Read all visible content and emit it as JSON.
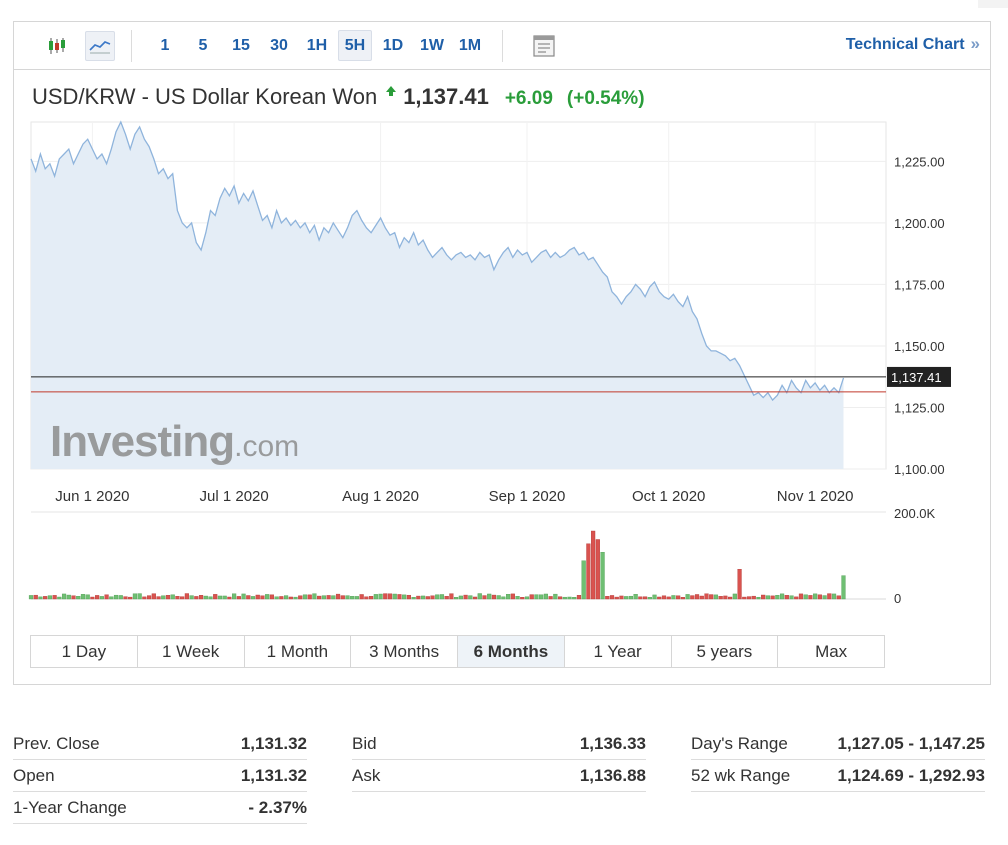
{
  "toolbar": {
    "chart_type_icons": [
      "candlestick-icon",
      "area-chart-icon"
    ],
    "intervals": [
      {
        "label": "1",
        "active": false
      },
      {
        "label": "5",
        "active": false
      },
      {
        "label": "15",
        "active": false
      },
      {
        "label": "30",
        "active": false
      },
      {
        "label": "1H",
        "active": false
      },
      {
        "label": "5H",
        "active": true
      },
      {
        "label": "1D",
        "active": false
      },
      {
        "label": "1W",
        "active": false
      },
      {
        "label": "1M",
        "active": false
      }
    ],
    "layout_icon": "layout-icon",
    "technical_link": "Technical Chart",
    "technical_chevron": "»"
  },
  "quote": {
    "name": "USD/KRW - US Dollar Korean Won",
    "price": "1,137.41",
    "change": "+6.09",
    "change_pct": "(+0.54%)",
    "direction_icon": "up-arrow-icon",
    "up_color": "#2a9d3a"
  },
  "watermark": {
    "brand": "Investing",
    "suffix": ".com"
  },
  "chart_data": {
    "type": "area",
    "title": "",
    "y_ticks": [
      "1,225.00",
      "1,200.00",
      "1,175.00",
      "1,150.00",
      "1,125.00",
      "1,100.00"
    ],
    "y_tick_values": [
      1225,
      1200,
      1175,
      1150,
      1125,
      1100
    ],
    "ylim": [
      1100,
      1241
    ],
    "x_ticks": [
      "Jun 1 2020",
      "Jul 1 2020",
      "Aug 1 2020",
      "Sep 1 2020",
      "Oct 1 2020",
      "Nov 1 2020"
    ],
    "xlim": [
      0,
      181
    ],
    "x_tick_positions": [
      13,
      43,
      74,
      105,
      135,
      166
    ],
    "current_price": 1137.41,
    "current_price_label": "1,137.41",
    "prev_close": 1131.32,
    "line_color": "#8fb4dc",
    "fill_color": "#e4edf6",
    "series": [
      {
        "x": 0,
        "y": 1226
      },
      {
        "x": 1,
        "y": 1221
      },
      {
        "x": 2,
        "y": 1228
      },
      {
        "x": 3,
        "y": 1222
      },
      {
        "x": 4,
        "y": 1224
      },
      {
        "x": 5,
        "y": 1219
      },
      {
        "x": 6,
        "y": 1226
      },
      {
        "x": 7,
        "y": 1228
      },
      {
        "x": 8,
        "y": 1230
      },
      {
        "x": 9,
        "y": 1224
      },
      {
        "x": 10,
        "y": 1228
      },
      {
        "x": 11,
        "y": 1232
      },
      {
        "x": 12,
        "y": 1234
      },
      {
        "x": 13,
        "y": 1230
      },
      {
        "x": 14,
        "y": 1226
      },
      {
        "x": 15,
        "y": 1228
      },
      {
        "x": 16,
        "y": 1224
      },
      {
        "x": 17,
        "y": 1230
      },
      {
        "x": 18,
        "y": 1237
      },
      {
        "x": 19,
        "y": 1241
      },
      {
        "x": 20,
        "y": 1236
      },
      {
        "x": 21,
        "y": 1230
      },
      {
        "x": 22,
        "y": 1236
      },
      {
        "x": 23,
        "y": 1239
      },
      {
        "x": 24,
        "y": 1234
      },
      {
        "x": 25,
        "y": 1231
      },
      {
        "x": 26,
        "y": 1226
      },
      {
        "x": 27,
        "y": 1220
      },
      {
        "x": 28,
        "y": 1222
      },
      {
        "x": 29,
        "y": 1218
      },
      {
        "x": 30,
        "y": 1220
      },
      {
        "x": 31,
        "y": 1205
      },
      {
        "x": 32,
        "y": 1200
      },
      {
        "x": 33,
        "y": 1198
      },
      {
        "x": 34,
        "y": 1200
      },
      {
        "x": 35,
        "y": 1192
      },
      {
        "x": 36,
        "y": 1189
      },
      {
        "x": 37,
        "y": 1196
      },
      {
        "x": 38,
        "y": 1205
      },
      {
        "x": 39,
        "y": 1203
      },
      {
        "x": 40,
        "y": 1210
      },
      {
        "x": 41,
        "y": 1214
      },
      {
        "x": 42,
        "y": 1211
      },
      {
        "x": 43,
        "y": 1215
      },
      {
        "x": 44,
        "y": 1208
      },
      {
        "x": 45,
        "y": 1212
      },
      {
        "x": 46,
        "y": 1209
      },
      {
        "x": 47,
        "y": 1213
      },
      {
        "x": 48,
        "y": 1207
      },
      {
        "x": 49,
        "y": 1201
      },
      {
        "x": 50,
        "y": 1203
      },
      {
        "x": 51,
        "y": 1198
      },
      {
        "x": 52,
        "y": 1205
      },
      {
        "x": 53,
        "y": 1200
      },
      {
        "x": 54,
        "y": 1202
      },
      {
        "x": 55,
        "y": 1199
      },
      {
        "x": 56,
        "y": 1201
      },
      {
        "x": 57,
        "y": 1198
      },
      {
        "x": 58,
        "y": 1200
      },
      {
        "x": 59,
        "y": 1196
      },
      {
        "x": 60,
        "y": 1199
      },
      {
        "x": 61,
        "y": 1193
      },
      {
        "x": 62,
        "y": 1198
      },
      {
        "x": 63,
        "y": 1196
      },
      {
        "x": 64,
        "y": 1200
      },
      {
        "x": 65,
        "y": 1197
      },
      {
        "x": 66,
        "y": 1194
      },
      {
        "x": 67,
        "y": 1198
      },
      {
        "x": 68,
        "y": 1203
      },
      {
        "x": 69,
        "y": 1205
      },
      {
        "x": 70,
        "y": 1201
      },
      {
        "x": 71,
        "y": 1198
      },
      {
        "x": 72,
        "y": 1196
      },
      {
        "x": 73,
        "y": 1199
      },
      {
        "x": 74,
        "y": 1202
      },
      {
        "x": 75,
        "y": 1198
      },
      {
        "x": 76,
        "y": 1195
      },
      {
        "x": 77,
        "y": 1196
      },
      {
        "x": 78,
        "y": 1190
      },
      {
        "x": 79,
        "y": 1194
      },
      {
        "x": 80,
        "y": 1192
      },
      {
        "x": 81,
        "y": 1196
      },
      {
        "x": 82,
        "y": 1191
      },
      {
        "x": 83,
        "y": 1193
      },
      {
        "x": 84,
        "y": 1189
      },
      {
        "x": 85,
        "y": 1186
      },
      {
        "x": 86,
        "y": 1188
      },
      {
        "x": 87,
        "y": 1190
      },
      {
        "x": 88,
        "y": 1187
      },
      {
        "x": 89,
        "y": 1185
      },
      {
        "x": 90,
        "y": 1187
      },
      {
        "x": 91,
        "y": 1188
      },
      {
        "x": 92,
        "y": 1186
      },
      {
        "x": 93,
        "y": 1187
      },
      {
        "x": 94,
        "y": 1185
      },
      {
        "x": 95,
        "y": 1188
      },
      {
        "x": 96,
        "y": 1186
      },
      {
        "x": 97,
        "y": 1187
      },
      {
        "x": 98,
        "y": 1181
      },
      {
        "x": 99,
        "y": 1185
      },
      {
        "x": 100,
        "y": 1188
      },
      {
        "x": 101,
        "y": 1190
      },
      {
        "x": 102,
        "y": 1186
      },
      {
        "x": 103,
        "y": 1189
      },
      {
        "x": 104,
        "y": 1187
      },
      {
        "x": 105,
        "y": 1188
      },
      {
        "x": 106,
        "y": 1184
      },
      {
        "x": 107,
        "y": 1186
      },
      {
        "x": 108,
        "y": 1188
      },
      {
        "x": 109,
        "y": 1189
      },
      {
        "x": 110,
        "y": 1186
      },
      {
        "x": 111,
        "y": 1188
      },
      {
        "x": 112,
        "y": 1186
      },
      {
        "x": 113,
        "y": 1187
      },
      {
        "x": 114,
        "y": 1189
      },
      {
        "x": 115,
        "y": 1190
      },
      {
        "x": 116,
        "y": 1187
      },
      {
        "x": 117,
        "y": 1188
      },
      {
        "x": 118,
        "y": 1185
      },
      {
        "x": 119,
        "y": 1186
      },
      {
        "x": 120,
        "y": 1183
      },
      {
        "x": 121,
        "y": 1180
      },
      {
        "x": 122,
        "y": 1178
      },
      {
        "x": 123,
        "y": 1172
      },
      {
        "x": 124,
        "y": 1170
      },
      {
        "x": 125,
        "y": 1167
      },
      {
        "x": 126,
        "y": 1170
      },
      {
        "x": 127,
        "y": 1172
      },
      {
        "x": 128,
        "y": 1175
      },
      {
        "x": 129,
        "y": 1173
      },
      {
        "x": 130,
        "y": 1170
      },
      {
        "x": 131,
        "y": 1174
      },
      {
        "x": 132,
        "y": 1176
      },
      {
        "x": 133,
        "y": 1172
      },
      {
        "x": 134,
        "y": 1170
      },
      {
        "x": 135,
        "y": 1169
      },
      {
        "x": 136,
        "y": 1171
      },
      {
        "x": 137,
        "y": 1168
      },
      {
        "x": 138,
        "y": 1166
      },
      {
        "x": 139,
        "y": 1170
      },
      {
        "x": 140,
        "y": 1164
      },
      {
        "x": 141,
        "y": 1161
      },
      {
        "x": 142,
        "y": 1155
      },
      {
        "x": 143,
        "y": 1150
      },
      {
        "x": 144,
        "y": 1148
      },
      {
        "x": 145,
        "y": 1148
      },
      {
        "x": 146,
        "y": 1147
      },
      {
        "x": 147,
        "y": 1146
      },
      {
        "x": 148,
        "y": 1144
      },
      {
        "x": 149,
        "y": 1145
      },
      {
        "x": 150,
        "y": 1142
      },
      {
        "x": 151,
        "y": 1138
      },
      {
        "x": 152,
        "y": 1134
      },
      {
        "x": 153,
        "y": 1130
      },
      {
        "x": 154,
        "y": 1131
      },
      {
        "x": 155,
        "y": 1129
      },
      {
        "x": 156,
        "y": 1131
      },
      {
        "x": 157,
        "y": 1128
      },
      {
        "x": 158,
        "y": 1130
      },
      {
        "x": 159,
        "y": 1134
      },
      {
        "x": 160,
        "y": 1131
      },
      {
        "x": 161,
        "y": 1136
      },
      {
        "x": 162,
        "y": 1133
      },
      {
        "x": 163,
        "y": 1131
      },
      {
        "x": 164,
        "y": 1136
      },
      {
        "x": 165,
        "y": 1133
      },
      {
        "x": 166,
        "y": 1135
      },
      {
        "x": 167,
        "y": 1132
      },
      {
        "x": 168,
        "y": 1134
      },
      {
        "x": 169,
        "y": 1131
      },
      {
        "x": 170,
        "y": 1133
      },
      {
        "x": 171,
        "y": 1131
      },
      {
        "x": 172,
        "y": 1137
      }
    ],
    "volume": {
      "ylim": [
        0,
        200000
      ],
      "y_ticks": [
        "200.0K",
        "0"
      ],
      "up_color": "#6fbf73",
      "down_color": "#d9534f",
      "spikes": [
        {
          "x": 117,
          "value": 90000,
          "dir": "up"
        },
        {
          "x": 118,
          "value": 130000,
          "dir": "down"
        },
        {
          "x": 119,
          "value": 160000,
          "dir": "down"
        },
        {
          "x": 120,
          "value": 140000,
          "dir": "down"
        },
        {
          "x": 121,
          "value": 110000,
          "dir": "up"
        },
        {
          "x": 150,
          "value": 70000,
          "dir": "down"
        },
        {
          "x": 172,
          "value": 55000,
          "dir": "up"
        }
      ]
    }
  },
  "ranges": [
    {
      "label": "1 Day",
      "active": false
    },
    {
      "label": "1 Week",
      "active": false
    },
    {
      "label": "1 Month",
      "active": false
    },
    {
      "label": "3 Months",
      "active": false
    },
    {
      "label": "6 Months",
      "active": true
    },
    {
      "label": "1 Year",
      "active": false
    },
    {
      "label": "5 years",
      "active": false
    },
    {
      "label": "Max",
      "active": false
    }
  ],
  "stats": {
    "col1": [
      {
        "label": "Prev. Close",
        "value": "1,131.32"
      },
      {
        "label": "Open",
        "value": "1,131.32"
      },
      {
        "label": "1-Year Change",
        "value": "- 2.37%"
      }
    ],
    "col2": [
      {
        "label": "Bid",
        "value": "1,136.33"
      },
      {
        "label": "Ask",
        "value": "1,136.88"
      }
    ],
    "col3": [
      {
        "label": "Day's Range",
        "value": "1,127.05 - 1,147.25"
      },
      {
        "label": "52 wk Range",
        "value": "1,124.69 - 1,292.93"
      }
    ]
  }
}
